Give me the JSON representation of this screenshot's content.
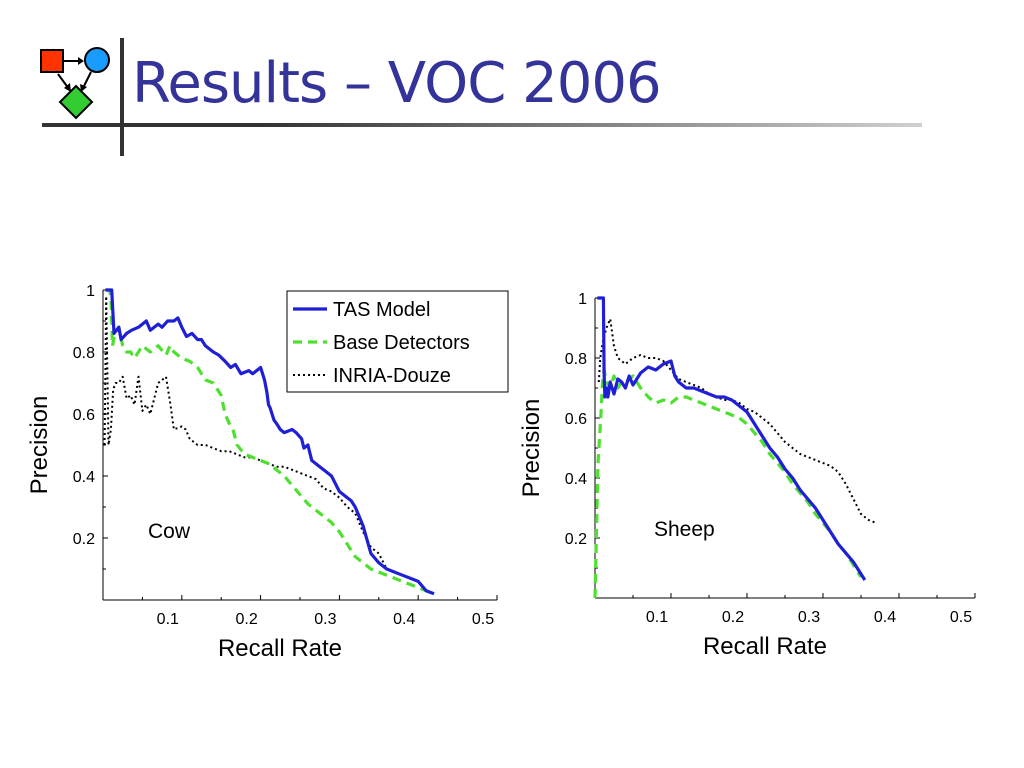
{
  "slide": {
    "title": "Results – VOC 2006"
  },
  "legend": [
    {
      "label": "TAS Model",
      "color": "#1f1fd6",
      "style": "solid"
    },
    {
      "label": "Base Detectors",
      "color": "#4ee02f",
      "style": "dashed"
    },
    {
      "label": "INRIA-Douze",
      "color": "#000000",
      "style": "dotted"
    }
  ],
  "chart_data": [
    {
      "type": "line",
      "annotation": "Cow",
      "xlabel": "Recall Rate",
      "ylabel": "Precision",
      "xlim": [
        0,
        0.5
      ],
      "ylim": [
        0,
        1
      ],
      "xticks": [
        "0.1",
        "0.2",
        "0.3",
        "0.4",
        "0.5"
      ],
      "yticks": [
        "0.2",
        "0.4",
        "0.6",
        "0.8",
        "1"
      ],
      "legend_position": "top-right",
      "series": [
        {
          "name": "TAS Model",
          "color": "#1f1fd6",
          "dash": "solid",
          "x": [
            0.003,
            0.007,
            0.011,
            0.014,
            0.02,
            0.023,
            0.03,
            0.036,
            0.045,
            0.055,
            0.06,
            0.07,
            0.075,
            0.082,
            0.09,
            0.095,
            0.1,
            0.106,
            0.113,
            0.12,
            0.125,
            0.13,
            0.14,
            0.147,
            0.155,
            0.162,
            0.168,
            0.175,
            0.185,
            0.19,
            0.2,
            0.205,
            0.208,
            0.21,
            0.212,
            0.217,
            0.22,
            0.225,
            0.23,
            0.24,
            0.245,
            0.252,
            0.255,
            0.26,
            0.263,
            0.265,
            0.27,
            0.275,
            0.28,
            0.29,
            0.3,
            0.31,
            0.315,
            0.32,
            0.325,
            0.33,
            0.34,
            0.35,
            0.36,
            0.37,
            0.38,
            0.39,
            0.4,
            0.41,
            0.42
          ],
          "y": [
            1,
            1,
            1,
            0.86,
            0.88,
            0.84,
            0.86,
            0.87,
            0.88,
            0.9,
            0.87,
            0.89,
            0.88,
            0.9,
            0.9,
            0.91,
            0.88,
            0.85,
            0.86,
            0.84,
            0.84,
            0.82,
            0.8,
            0.79,
            0.77,
            0.75,
            0.76,
            0.73,
            0.74,
            0.73,
            0.75,
            0.71,
            0.67,
            0.63,
            0.62,
            0.58,
            0.57,
            0.55,
            0.54,
            0.55,
            0.54,
            0.52,
            0.49,
            0.5,
            0.47,
            0.45,
            0.44,
            0.43,
            0.42,
            0.4,
            0.35,
            0.33,
            0.32,
            0.3,
            0.27,
            0.24,
            0.15,
            0.12,
            0.1,
            0.09,
            0.08,
            0.07,
            0.06,
            0.03,
            0.02
          ]
        },
        {
          "name": "Base Detectors",
          "color": "#4ee02f",
          "dash": "dashed",
          "x": [
            0.003,
            0.008,
            0.01,
            0.012,
            0.015,
            0.02,
            0.025,
            0.03,
            0.035,
            0.04,
            0.05,
            0.06,
            0.07,
            0.08,
            0.085,
            0.09,
            0.1,
            0.11,
            0.12,
            0.13,
            0.14,
            0.15,
            0.155,
            0.16,
            0.165,
            0.17,
            0.18,
            0.19,
            0.2,
            0.21,
            0.22,
            0.23,
            0.24,
            0.25,
            0.26,
            0.27,
            0.28,
            0.29,
            0.3,
            0.31,
            0.32,
            0.33,
            0.34,
            0.35,
            0.36,
            0.37,
            0.38,
            0.39,
            0.4,
            0.41,
            0.42
          ],
          "y": [
            1,
            1,
            0.98,
            0.82,
            0.86,
            0.88,
            0.82,
            0.8,
            0.8,
            0.78,
            0.82,
            0.8,
            0.82,
            0.79,
            0.82,
            0.8,
            0.78,
            0.77,
            0.75,
            0.71,
            0.7,
            0.66,
            0.6,
            0.57,
            0.55,
            0.5,
            0.47,
            0.46,
            0.45,
            0.44,
            0.42,
            0.4,
            0.37,
            0.34,
            0.31,
            0.29,
            0.27,
            0.25,
            0.22,
            0.18,
            0.14,
            0.12,
            0.1,
            0.09,
            0.08,
            0.07,
            0.06,
            0.05,
            0.04,
            0.03,
            0.02
          ]
        },
        {
          "name": "INRIA-Douze",
          "color": "#000000",
          "dash": "dotted",
          "x": [
            0.002,
            0.004,
            0.007,
            0.01,
            0.013,
            0.016,
            0.02,
            0.025,
            0.03,
            0.035,
            0.04,
            0.045,
            0.05,
            0.055,
            0.06,
            0.07,
            0.08,
            0.085,
            0.09,
            0.1,
            0.105,
            0.11,
            0.12,
            0.13,
            0.14,
            0.15,
            0.16,
            0.17,
            0.18,
            0.19,
            0.2,
            0.21,
            0.22,
            0.23,
            0.24,
            0.25,
            0.26,
            0.27,
            0.28,
            0.29,
            0.3,
            0.31,
            0.32,
            0.33,
            0.34,
            0.35,
            0.36
          ],
          "y": [
            0.5,
            0.98,
            0.5,
            0.55,
            0.68,
            0.7,
            0.7,
            0.72,
            0.65,
            0.66,
            0.63,
            0.72,
            0.61,
            0.63,
            0.6,
            0.7,
            0.72,
            0.64,
            0.55,
            0.56,
            0.55,
            0.52,
            0.5,
            0.5,
            0.49,
            0.48,
            0.48,
            0.47,
            0.46,
            0.46,
            0.45,
            0.44,
            0.43,
            0.43,
            0.42,
            0.41,
            0.4,
            0.39,
            0.36,
            0.35,
            0.33,
            0.3,
            0.28,
            0.22,
            0.17,
            0.15,
            0.1
          ]
        }
      ]
    },
    {
      "type": "line",
      "annotation": "Sheep",
      "xlabel": "Recall Rate",
      "ylabel": "Precision",
      "xlim": [
        0,
        0.5
      ],
      "ylim": [
        0,
        1
      ],
      "xticks": [
        "0.1",
        "0.2",
        "0.3",
        "0.4",
        "0.5"
      ],
      "yticks": [
        "0.2",
        "0.4",
        "0.6",
        "0.8",
        "1"
      ],
      "series": [
        {
          "name": "TAS Model",
          "color": "#1f1fd6",
          "dash": "solid",
          "x": [
            0.003,
            0.011,
            0.012,
            0.013,
            0.015,
            0.017,
            0.02,
            0.025,
            0.03,
            0.035,
            0.04,
            0.045,
            0.05,
            0.06,
            0.07,
            0.08,
            0.09,
            0.1,
            0.105,
            0.11,
            0.12,
            0.13,
            0.14,
            0.15,
            0.16,
            0.17,
            0.18,
            0.19,
            0.2,
            0.21,
            0.22,
            0.23,
            0.24,
            0.25,
            0.26,
            0.27,
            0.28,
            0.29,
            0.3,
            0.31,
            0.32,
            0.33,
            0.34,
            0.35,
            0.355
          ],
          "y": [
            1,
            1,
            0.75,
            0.67,
            0.7,
            0.67,
            0.72,
            0.68,
            0.73,
            0.72,
            0.7,
            0.74,
            0.71,
            0.75,
            0.77,
            0.76,
            0.78,
            0.79,
            0.74,
            0.72,
            0.7,
            0.7,
            0.69,
            0.68,
            0.67,
            0.67,
            0.66,
            0.64,
            0.62,
            0.58,
            0.54,
            0.5,
            0.47,
            0.43,
            0.4,
            0.36,
            0.33,
            0.3,
            0.26,
            0.22,
            0.18,
            0.15,
            0.12,
            0.08,
            0.06
          ]
        },
        {
          "name": "Base Detectors",
          "color": "#4ee02f",
          "dash": "dashed",
          "x": [
            0,
            0.004,
            0.008,
            0.01,
            0.012,
            0.015,
            0.02,
            0.025,
            0.03,
            0.035,
            0.04,
            0.05,
            0.06,
            0.07,
            0.08,
            0.09,
            0.1,
            0.11,
            0.12,
            0.13,
            0.14,
            0.15,
            0.16,
            0.17,
            0.18,
            0.19,
            0.2,
            0.21,
            0.22,
            0.23,
            0.24,
            0.25,
            0.26,
            0.27,
            0.28,
            0.29,
            0.3,
            0.31,
            0.32,
            0.33,
            0.34,
            0.35
          ],
          "y": [
            0,
            0.45,
            0.62,
            0.72,
            0.76,
            0.72,
            0.7,
            0.74,
            0.7,
            0.72,
            0.72,
            0.74,
            0.7,
            0.67,
            0.65,
            0.66,
            0.65,
            0.67,
            0.67,
            0.66,
            0.65,
            0.64,
            0.63,
            0.62,
            0.61,
            0.6,
            0.58,
            0.55,
            0.52,
            0.48,
            0.45,
            0.42,
            0.38,
            0.35,
            0.32,
            0.28,
            0.25,
            0.22,
            0.18,
            0.15,
            0.11,
            0.07
          ]
        },
        {
          "name": "INRIA-Douze",
          "color": "#000000",
          "dash": "dotted",
          "x": [
            0.005,
            0.007,
            0.01,
            0.015,
            0.02,
            0.025,
            0.03,
            0.04,
            0.05,
            0.06,
            0.07,
            0.08,
            0.09,
            0.1,
            0.11,
            0.12,
            0.13,
            0.14,
            0.15,
            0.16,
            0.17,
            0.18,
            0.19,
            0.2,
            0.21,
            0.22,
            0.23,
            0.24,
            0.25,
            0.26,
            0.27,
            0.28,
            0.29,
            0.3,
            0.31,
            0.32,
            0.33,
            0.34,
            0.35,
            0.36,
            0.37
          ],
          "y": [
            0.72,
            0.8,
            0.85,
            0.9,
            0.93,
            0.84,
            0.8,
            0.78,
            0.8,
            0.81,
            0.8,
            0.8,
            0.79,
            0.76,
            0.73,
            0.72,
            0.71,
            0.7,
            0.68,
            0.67,
            0.66,
            0.66,
            0.65,
            0.63,
            0.62,
            0.6,
            0.58,
            0.55,
            0.52,
            0.5,
            0.48,
            0.47,
            0.46,
            0.45,
            0.44,
            0.42,
            0.38,
            0.33,
            0.28,
            0.26,
            0.25
          ]
        }
      ]
    }
  ]
}
